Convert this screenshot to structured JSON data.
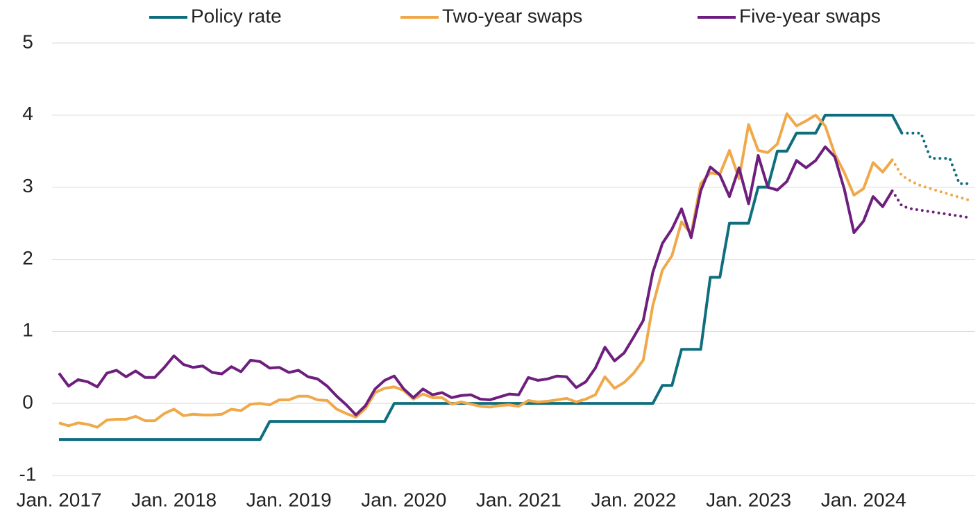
{
  "chart_data": {
    "type": "line",
    "categories": [
      "Jan. 2017",
      null,
      null,
      null,
      null,
      null,
      null,
      null,
      null,
      null,
      null,
      null,
      "Jan. 2018",
      null,
      null,
      null,
      null,
      null,
      null,
      null,
      null,
      null,
      null,
      null,
      "Jan. 2019",
      null,
      null,
      null,
      null,
      null,
      null,
      null,
      null,
      null,
      null,
      null,
      "Jan. 2020",
      null,
      null,
      null,
      null,
      null,
      null,
      null,
      null,
      null,
      null,
      null,
      "Jan. 2021",
      null,
      null,
      null,
      null,
      null,
      null,
      null,
      null,
      null,
      null,
      null,
      "Jan. 2022",
      null,
      null,
      null,
      null,
      null,
      null,
      null,
      null,
      null,
      null,
      null,
      "Jan. 2023",
      null,
      null,
      null,
      null,
      null,
      null,
      null,
      null,
      null,
      null,
      null,
      "Jan. 2024",
      null,
      null,
      null,
      null,
      null,
      null,
      null,
      null,
      null,
      null,
      null
    ],
    "series": [
      {
        "name": "Policy rate",
        "color": "#0f6e7e",
        "dotted_from": 88,
        "values": [
          -0.5,
          -0.5,
          -0.5,
          -0.5,
          -0.5,
          -0.5,
          -0.5,
          -0.5,
          -0.5,
          -0.5,
          -0.5,
          -0.5,
          -0.5,
          -0.5,
          -0.5,
          -0.5,
          -0.5,
          -0.5,
          -0.5,
          -0.5,
          -0.5,
          -0.5,
          -0.25,
          -0.25,
          -0.25,
          -0.25,
          -0.25,
          -0.25,
          -0.25,
          -0.25,
          -0.25,
          -0.25,
          -0.25,
          -0.25,
          -0.25,
          0,
          0,
          0,
          0,
          0,
          0,
          0,
          0,
          0,
          0,
          0,
          0,
          0,
          0,
          0,
          0,
          0,
          0,
          0,
          0,
          0,
          0,
          0,
          0,
          0,
          0,
          0,
          0,
          0.25,
          0.25,
          0.75,
          0.75,
          0.75,
          1.75,
          1.75,
          2.5,
          2.5,
          2.5,
          3.0,
          3.0,
          3.5,
          3.5,
          3.75,
          3.75,
          3.75,
          4.0,
          4.0,
          4.0,
          4.0,
          4.0,
          4.0,
          4.0,
          4.0,
          3.75,
          3.75,
          3.75,
          3.4,
          3.4,
          3.4,
          3.05,
          3.05
        ]
      },
      {
        "name": "Two-year swaps",
        "color": "#f0a94a",
        "dotted_from": 87,
        "values": [
          -0.27,
          -0.31,
          -0.27,
          -0.29,
          -0.33,
          -0.23,
          -0.22,
          -0.22,
          -0.18,
          -0.24,
          -0.24,
          -0.14,
          -0.08,
          -0.17,
          -0.15,
          -0.16,
          -0.16,
          -0.15,
          -0.08,
          -0.1,
          -0.01,
          0.0,
          -0.02,
          0.05,
          0.05,
          0.1,
          0.1,
          0.05,
          0.04,
          -0.08,
          -0.14,
          -0.19,
          -0.07,
          0.15,
          0.21,
          0.23,
          0.18,
          0.06,
          0.13,
          0.08,
          0.08,
          -0.01,
          0.02,
          -0.01,
          -0.04,
          -0.05,
          -0.03,
          -0.02,
          -0.04,
          0.04,
          0.02,
          0.03,
          0.05,
          0.07,
          0.02,
          0.06,
          0.12,
          0.37,
          0.21,
          0.29,
          0.42,
          0.6,
          1.36,
          1.85,
          2.05,
          2.52,
          2.35,
          3.05,
          3.2,
          3.18,
          3.51,
          3.12,
          3.87,
          3.51,
          3.48,
          3.6,
          4.02,
          3.85,
          3.92,
          4.0,
          3.85,
          3.46,
          3.2,
          2.89,
          2.98,
          3.34,
          3.21,
          3.38,
          3.16,
          3.08,
          3.02,
          2.98,
          2.94,
          2.9,
          2.86,
          2.82
        ]
      },
      {
        "name": "Five-year swaps",
        "color": "#6e1f7e",
        "dotted_from": 87,
        "values": [
          0.42,
          0.24,
          0.33,
          0.3,
          0.23,
          0.42,
          0.46,
          0.37,
          0.45,
          0.36,
          0.36,
          0.5,
          0.66,
          0.54,
          0.5,
          0.52,
          0.43,
          0.41,
          0.51,
          0.44,
          0.6,
          0.58,
          0.49,
          0.5,
          0.43,
          0.46,
          0.37,
          0.34,
          0.24,
          0.1,
          -0.02,
          -0.16,
          -0.03,
          0.2,
          0.32,
          0.38,
          0.2,
          0.08,
          0.2,
          0.12,
          0.15,
          0.08,
          0.11,
          0.12,
          0.06,
          0.05,
          0.09,
          0.13,
          0.12,
          0.36,
          0.32,
          0.34,
          0.38,
          0.37,
          0.22,
          0.3,
          0.49,
          0.78,
          0.59,
          0.7,
          0.92,
          1.15,
          1.82,
          2.22,
          2.42,
          2.7,
          2.3,
          2.95,
          3.28,
          3.17,
          2.87,
          3.27,
          2.77,
          3.44,
          3.0,
          2.96,
          3.08,
          3.37,
          3.27,
          3.37,
          3.56,
          3.42,
          2.97,
          2.37,
          2.53,
          2.87,
          2.73,
          2.95,
          2.74,
          2.7,
          2.68,
          2.66,
          2.64,
          2.62,
          2.6,
          2.58
        ]
      }
    ],
    "ylim": [
      -1,
      5
    ],
    "yticks": [
      -1,
      0,
      1,
      2,
      3,
      4,
      5
    ],
    "grid": true,
    "legend": "top"
  }
}
